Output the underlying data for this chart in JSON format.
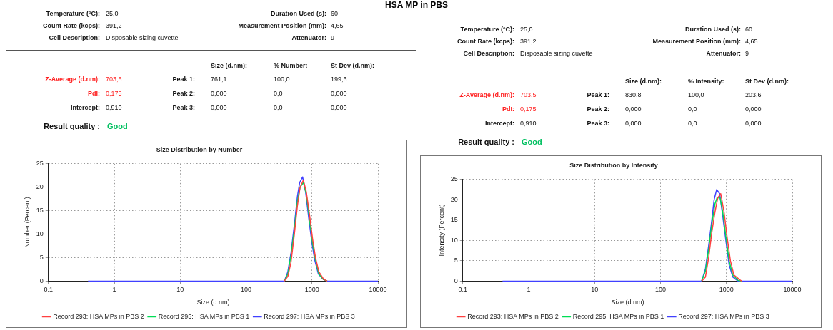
{
  "chart_data": [
    {
      "type": "other",
      "title": "HSA MP in PBS",
      "annotations": [
        "Temperature (°C):",
        "25,0",
        "Duration Used (s):",
        "60",
        "Count Rate (kcps):",
        "391,2",
        "Measurement Position (mm):",
        "4,65",
        "Cell Description:",
        "Disposable sizing cuvette",
        "Attenuator:",
        "9",
        "Size (d.nm):",
        "% Number:",
        "St Dev (d.nm):",
        "Z-Average (d.nm):",
        "703,5",
        "Peak 1:",
        "761,1",
        "100,0",
        "199,6",
        "PdI:",
        "0,175",
        "Peak 2:",
        "0,000",
        "0,0",
        "0,000",
        "Intercept:",
        "0,910",
        "Peak 3:",
        "0,000",
        "0,0",
        "0,000",
        "Result quality :",
        "Good"
      ]
    },
    {
      "type": "line",
      "title": "Size Distribution by Number",
      "xlabel": "Size (d.nm)",
      "ylabel": "Number (Percent)",
      "log": "x",
      "xlim": [
        0.1,
        10000
      ],
      "xticks": [
        0.1,
        1,
        10,
        100,
        1000,
        10000
      ],
      "ylim": [
        0,
        25
      ],
      "yticks": [
        0,
        5,
        10,
        15,
        20,
        25
      ],
      "grid": true,
      "legend": "bottom",
      "marker": "none",
      "series": [
        {
          "name": "Record 293: HSA MPs in PBS 2",
          "color": "#ff4040",
          "x": [
            380,
            430,
            480,
            540,
            600,
            660,
            740,
            820,
            920,
            1020,
            1130,
            1270,
            1500,
            1700
          ],
          "values": [
            0,
            1,
            4,
            10,
            16,
            20,
            21.5,
            19,
            14,
            9,
            5,
            2,
            0.4,
            0
          ]
        },
        {
          "name": "Record 295: HSA MPs in PBS 1",
          "color": "#00dd55",
          "x": [
            380,
            430,
            480,
            540,
            600,
            660,
            740,
            820,
            920,
            1020,
            1130,
            1270,
            1500,
            1700
          ],
          "values": [
            0,
            1.5,
            5.5,
            11,
            17,
            20,
            21,
            18.5,
            13,
            8,
            4.5,
            1.5,
            0.3,
            0
          ]
        },
        {
          "name": "Record 297: HSA MPs in PBS 3",
          "color": "#4040ff",
          "x": [
            0.4,
            380,
            430,
            480,
            540,
            600,
            650,
            720,
            800,
            900,
            1000,
            1100,
            1250,
            1500,
            1700,
            10000
          ],
          "values": [
            0,
            0,
            2,
            6,
            12,
            18,
            21,
            22.2,
            19,
            13,
            8,
            4.5,
            1.5,
            0.3,
            0,
            0
          ]
        }
      ]
    },
    {
      "type": "other",
      "annotations": [
        "Temperature (°C):",
        "25,0",
        "Duration Used (s):",
        "60",
        "Count Rate (kcps):",
        "391,2",
        "Measurement Position (mm):",
        "4,65",
        "Cell Description:",
        "Disposable sizing cuvette",
        "Attenuator:",
        "9",
        "Size (d.nm):",
        "% Intensity:",
        "St Dev (d.nm):",
        "Z-Average (d.nm):",
        "703,5",
        "Peak 1:",
        "830,8",
        "100,0",
        "203,6",
        "PdI:",
        "0,175",
        "Peak 2:",
        "0,000",
        "0,0",
        "0,000",
        "Intercept:",
        "0,910",
        "Peak 3:",
        "0,000",
        "0,0",
        "0,000",
        "Result quality :",
        "Good"
      ]
    },
    {
      "type": "line",
      "title": "Size Distribution by Intensity",
      "xlabel": "Size (d.nm)",
      "ylabel": "Intensity (Percent)",
      "log": "x",
      "xlim": [
        0.1,
        10000
      ],
      "xticks": [
        0.1,
        1,
        10,
        100,
        1000,
        10000
      ],
      "ylim": [
        0,
        25
      ],
      "yticks": [
        0,
        5,
        10,
        15,
        20,
        25
      ],
      "grid": true,
      "legend": "bottom",
      "marker": "none",
      "series": [
        {
          "name": "Record 293: HSA MPs in PBS 2",
          "color": "#ff4040",
          "x": [
            420,
            480,
            540,
            600,
            670,
            740,
            820,
            920,
            1020,
            1150,
            1300,
            1600,
            1700
          ],
          "values": [
            0,
            1,
            6,
            12,
            17,
            20.5,
            21.5,
            17,
            11,
            5,
            1.5,
            0.3,
            0
          ]
        },
        {
          "name": "Record 295: HSA MPs in PBS 1",
          "color": "#00dd55",
          "x": [
            420,
            480,
            540,
            600,
            670,
            720,
            800,
            880,
            980,
            1100,
            1250,
            1500,
            1700
          ],
          "values": [
            0,
            2.5,
            8,
            14,
            19,
            20.5,
            20.5,
            17,
            11,
            5,
            1.5,
            0.2,
            0
          ]
        },
        {
          "name": "Record 297: HSA MPs in PBS 3",
          "color": "#4040ff",
          "x": [
            0.4,
            420,
            480,
            540,
            600,
            650,
            710,
            790,
            880,
            980,
            1100,
            1250,
            1500,
            10000
          ],
          "values": [
            0,
            0,
            3,
            9,
            15,
            20,
            22.5,
            21.5,
            16,
            10,
            4,
            1,
            0,
            0
          ]
        }
      ]
    }
  ]
}
